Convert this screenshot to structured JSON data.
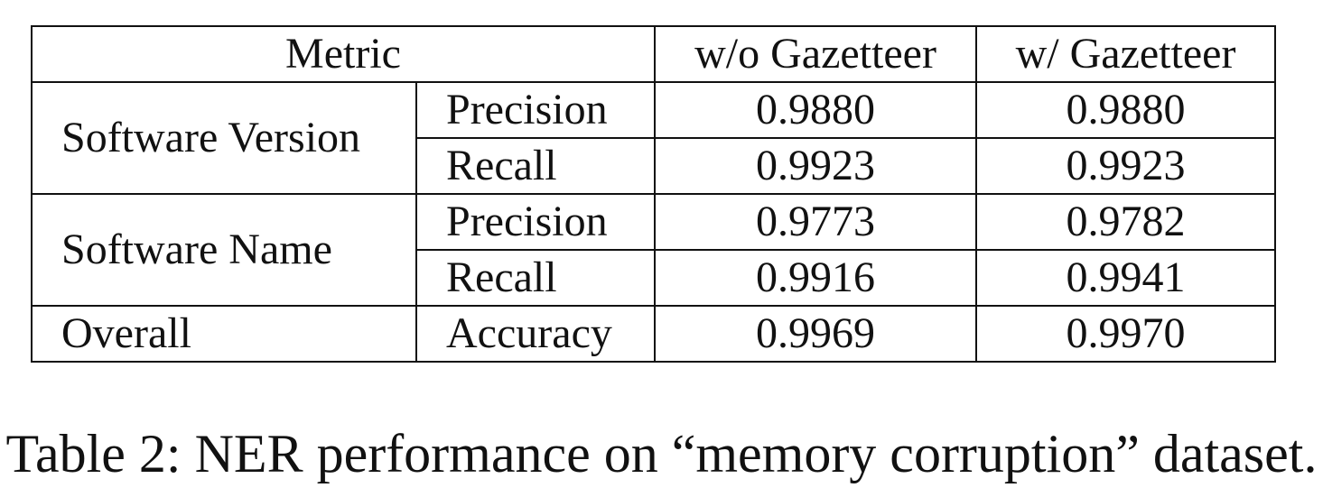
{
  "table": {
    "header": {
      "metric": "Metric",
      "without": "w/o Gazetteer",
      "with": "w/ Gazetteer"
    },
    "groups": [
      {
        "name": "Software Version",
        "rows": [
          {
            "metric": "Precision",
            "without": "0.9880",
            "with": "0.9880"
          },
          {
            "metric": "Recall",
            "without": "0.9923",
            "with": "0.9923"
          }
        ]
      },
      {
        "name": "Software Name",
        "rows": [
          {
            "metric": "Precision",
            "without": "0.9773",
            "with": "0.9782"
          },
          {
            "metric": "Recall",
            "without": "0.9916",
            "with": "0.9941"
          }
        ]
      },
      {
        "name": "Overall",
        "rows": [
          {
            "metric": "Accuracy",
            "without": "0.9969",
            "with": "0.9970"
          }
        ]
      }
    ]
  },
  "caption": "Table 2: NER performance on “memory corruption” dataset."
}
